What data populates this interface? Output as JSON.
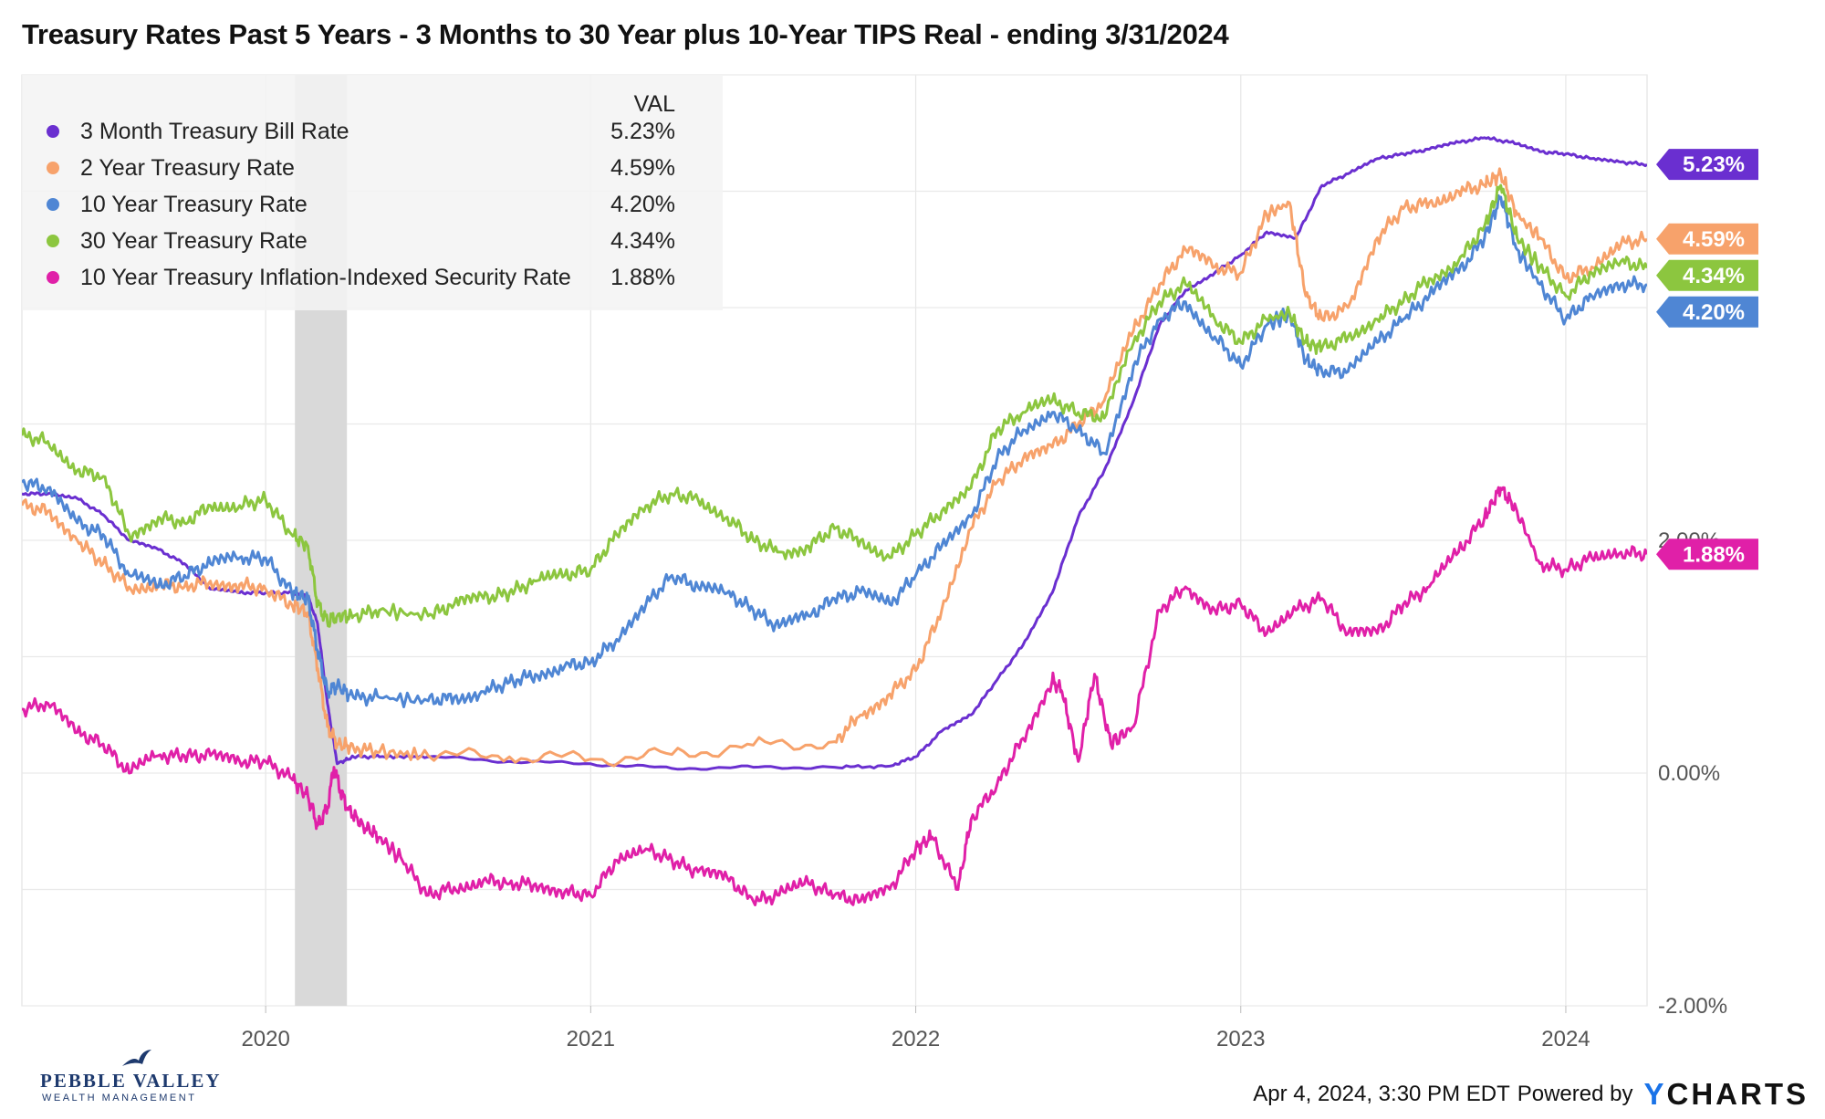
{
  "title": "Treasury Rates Past 5 Years - 3 Months to 30 Year plus 10-Year TIPS Real - ending 3/31/2024",
  "legend_header": "VAL",
  "footer": {
    "timestamp": "Apr 4, 2024, 3:30 PM EDT",
    "powered_by": "Powered by",
    "brand_y": "Y",
    "brand_rest": "CHARTS"
  },
  "logo": {
    "name": "PEBBLE VALLEY",
    "subtitle": "WEALTH MANAGEMENT"
  },
  "chart_data": {
    "type": "line",
    "title": "Treasury Rates Past 5 Years - 3 Months to 30 Year plus 10-Year TIPS Real - ending 3/31/2024",
    "xlabel": "",
    "ylabel": "",
    "x_range": [
      2019.25,
      2024.25
    ],
    "ylim": [
      -2.0,
      6.0
    ],
    "x_ticks": [
      {
        "value": 2020,
        "label": "2020"
      },
      {
        "value": 2021,
        "label": "2021"
      },
      {
        "value": 2022,
        "label": "2022"
      },
      {
        "value": 2023,
        "label": "2023"
      },
      {
        "value": 2024,
        "label": "2024"
      }
    ],
    "y_ticks": [
      {
        "value": 2,
        "label": "2.00%"
      },
      {
        "value": 0,
        "label": "0.00%"
      },
      {
        "value": -2,
        "label": "-2.00%"
      }
    ],
    "recession_band": {
      "start": 2020.09,
      "end": 2020.25
    },
    "legend_position": "top-left",
    "series": [
      {
        "name": "3 Month Treasury Bill Rate",
        "value_label": "5.23%",
        "color": "#6a2fd0",
        "x": [
          2019.25,
          2019.33,
          2019.42,
          2019.5,
          2019.58,
          2019.67,
          2019.75,
          2019.83,
          2019.92,
          2020.0,
          2020.08,
          2020.13,
          2020.16,
          2020.19,
          2020.22,
          2020.27,
          2020.35,
          2020.5,
          2020.75,
          2021.0,
          2021.25,
          2021.5,
          2021.75,
          2021.92,
          2022.0,
          2022.08,
          2022.17,
          2022.25,
          2022.33,
          2022.42,
          2022.5,
          2022.58,
          2022.67,
          2022.75,
          2022.83,
          2022.92,
          2023.0,
          2023.08,
          2023.17,
          2023.25,
          2023.33,
          2023.42,
          2023.5,
          2023.58,
          2023.67,
          2023.75,
          2023.83,
          2023.92,
          2024.0,
          2024.08,
          2024.17,
          2024.25
        ],
        "y": [
          2.4,
          2.4,
          2.36,
          2.22,
          2.0,
          1.92,
          1.8,
          1.58,
          1.55,
          1.55,
          1.55,
          1.52,
          1.28,
          0.6,
          0.08,
          0.14,
          0.14,
          0.14,
          0.1,
          0.08,
          0.04,
          0.05,
          0.05,
          0.06,
          0.14,
          0.36,
          0.5,
          0.8,
          1.1,
          1.55,
          2.2,
          2.6,
          3.2,
          3.85,
          4.15,
          4.3,
          4.45,
          4.65,
          4.6,
          5.05,
          5.15,
          5.28,
          5.32,
          5.36,
          5.42,
          5.46,
          5.42,
          5.34,
          5.32,
          5.28,
          5.25,
          5.23
        ]
      },
      {
        "name": "2 Year Treasury Rate",
        "value_label": "4.59%",
        "color": "#f7a26b",
        "x": [
          2019.25,
          2019.33,
          2019.42,
          2019.5,
          2019.58,
          2019.67,
          2019.75,
          2019.83,
          2019.92,
          2020.0,
          2020.08,
          2020.13,
          2020.16,
          2020.19,
          2020.22,
          2020.27,
          2020.35,
          2020.5,
          2020.75,
          2021.0,
          2021.25,
          2021.5,
          2021.75,
          2021.83,
          2021.92,
          2022.0,
          2022.08,
          2022.17,
          2022.25,
          2022.33,
          2022.42,
          2022.5,
          2022.58,
          2022.67,
          2022.75,
          2022.83,
          2022.92,
          2023.0,
          2023.08,
          2023.15,
          2023.2,
          2023.25,
          2023.33,
          2023.42,
          2023.5,
          2023.58,
          2023.67,
          2023.75,
          2023.8,
          2023.85,
          2023.92,
          2024.0,
          2024.08,
          2024.17,
          2024.25
        ],
        "y": [
          2.3,
          2.25,
          2.0,
          1.8,
          1.6,
          1.62,
          1.6,
          1.65,
          1.62,
          1.58,
          1.45,
          1.38,
          0.9,
          0.4,
          0.25,
          0.22,
          0.18,
          0.15,
          0.14,
          0.12,
          0.16,
          0.24,
          0.27,
          0.5,
          0.68,
          0.88,
          1.4,
          2.1,
          2.5,
          2.7,
          2.8,
          3.0,
          3.2,
          3.8,
          4.2,
          4.5,
          4.35,
          4.3,
          4.8,
          4.9,
          4.1,
          3.9,
          4.0,
          4.6,
          4.85,
          4.9,
          5.0,
          5.05,
          5.15,
          4.8,
          4.6,
          4.25,
          4.35,
          4.55,
          4.59
        ]
      },
      {
        "name": "10 Year Treasury Rate",
        "value_label": "4.20%",
        "color": "#4f86d4",
        "x": [
          2019.25,
          2019.33,
          2019.42,
          2019.5,
          2019.58,
          2019.67,
          2019.75,
          2019.83,
          2019.92,
          2020.0,
          2020.08,
          2020.13,
          2020.16,
          2020.19,
          2020.22,
          2020.27,
          2020.35,
          2020.5,
          2020.58,
          2020.67,
          2020.75,
          2020.83,
          2020.92,
          2021.0,
          2021.08,
          2021.17,
          2021.25,
          2021.33,
          2021.42,
          2021.5,
          2021.58,
          2021.67,
          2021.75,
          2021.83,
          2021.92,
          2022.0,
          2022.08,
          2022.17,
          2022.25,
          2022.33,
          2022.42,
          2022.5,
          2022.58,
          2022.67,
          2022.75,
          2022.83,
          2022.92,
          2023.0,
          2023.08,
          2023.15,
          2023.2,
          2023.25,
          2023.33,
          2023.42,
          2023.5,
          2023.58,
          2023.67,
          2023.75,
          2023.8,
          2023.85,
          2023.92,
          2024.0,
          2024.08,
          2024.17,
          2024.25
        ],
        "y": [
          2.5,
          2.45,
          2.15,
          2.05,
          1.7,
          1.6,
          1.7,
          1.8,
          1.85,
          1.85,
          1.55,
          1.5,
          1.05,
          0.7,
          0.75,
          0.65,
          0.65,
          0.62,
          0.65,
          0.7,
          0.78,
          0.85,
          0.92,
          0.95,
          1.15,
          1.45,
          1.7,
          1.6,
          1.55,
          1.4,
          1.25,
          1.35,
          1.5,
          1.55,
          1.45,
          1.7,
          1.95,
          2.2,
          2.7,
          2.95,
          3.1,
          2.95,
          2.75,
          3.5,
          3.9,
          4.05,
          3.75,
          3.5,
          3.85,
          3.95,
          3.55,
          3.45,
          3.45,
          3.7,
          3.9,
          4.1,
          4.3,
          4.6,
          4.95,
          4.5,
          4.2,
          3.9,
          4.1,
          4.2,
          4.2
        ]
      },
      {
        "name": "30 Year Treasury Rate",
        "value_label": "4.34%",
        "color": "#8cc63f",
        "x": [
          2019.25,
          2019.33,
          2019.42,
          2019.5,
          2019.58,
          2019.67,
          2019.75,
          2019.83,
          2019.92,
          2020.0,
          2020.08,
          2020.13,
          2020.16,
          2020.19,
          2020.22,
          2020.27,
          2020.35,
          2020.5,
          2020.58,
          2020.67,
          2020.75,
          2020.83,
          2020.92,
          2021.0,
          2021.08,
          2021.17,
          2021.25,
          2021.33,
          2021.42,
          2021.5,
          2021.58,
          2021.67,
          2021.75,
          2021.83,
          2021.92,
          2022.0,
          2022.08,
          2022.17,
          2022.25,
          2022.33,
          2022.42,
          2022.5,
          2022.58,
          2022.67,
          2022.75,
          2022.83,
          2022.92,
          2023.0,
          2023.08,
          2023.15,
          2023.2,
          2023.25,
          2023.33,
          2023.42,
          2023.5,
          2023.58,
          2023.67,
          2023.75,
          2023.8,
          2023.85,
          2023.92,
          2024.0,
          2024.08,
          2024.17,
          2024.25
        ],
        "y": [
          2.9,
          2.85,
          2.6,
          2.55,
          2.05,
          2.2,
          2.15,
          2.3,
          2.3,
          2.35,
          2.05,
          1.95,
          1.45,
          1.3,
          1.35,
          1.35,
          1.4,
          1.35,
          1.45,
          1.5,
          1.55,
          1.65,
          1.7,
          1.75,
          2.05,
          2.3,
          2.4,
          2.35,
          2.2,
          2.0,
          1.9,
          1.95,
          2.1,
          2.0,
          1.85,
          2.05,
          2.25,
          2.45,
          2.95,
          3.1,
          3.2,
          3.1,
          3.05,
          3.7,
          4.05,
          4.2,
          3.9,
          3.7,
          3.9,
          3.95,
          3.7,
          3.65,
          3.75,
          3.9,
          4.05,
          4.25,
          4.4,
          4.7,
          5.05,
          4.6,
          4.35,
          4.1,
          4.3,
          4.4,
          4.34
        ]
      },
      {
        "name": "10 Year Treasury Inflation-Indexed Security Rate",
        "value_label": "1.88%",
        "color": "#e020a8",
        "x": [
          2019.25,
          2019.33,
          2019.42,
          2019.5,
          2019.58,
          2019.67,
          2019.75,
          2019.83,
          2019.92,
          2020.0,
          2020.08,
          2020.13,
          2020.16,
          2020.19,
          2020.21,
          2020.23,
          2020.25,
          2020.3,
          2020.35,
          2020.42,
          2020.5,
          2020.58,
          2020.67,
          2020.75,
          2020.83,
          2020.92,
          2021.0,
          2021.08,
          2021.17,
          2021.25,
          2021.33,
          2021.42,
          2021.5,
          2021.58,
          2021.67,
          2021.75,
          2021.83,
          2021.92,
          2022.0,
          2022.05,
          2022.13,
          2022.17,
          2022.25,
          2022.33,
          2022.42,
          2022.45,
          2022.5,
          2022.55,
          2022.6,
          2022.67,
          2022.75,
          2022.83,
          2022.92,
          2023.0,
          2023.08,
          2023.17,
          2023.25,
          2023.33,
          2023.42,
          2023.5,
          2023.58,
          2023.67,
          2023.75,
          2023.8,
          2023.85,
          2023.92,
          2024.0,
          2024.08,
          2024.17,
          2024.25
        ],
        "y": [
          0.55,
          0.6,
          0.35,
          0.25,
          0.0,
          0.15,
          0.15,
          0.15,
          0.1,
          0.1,
          -0.05,
          -0.2,
          -0.45,
          -0.3,
          0.05,
          -0.15,
          -0.3,
          -0.45,
          -0.55,
          -0.75,
          -1.05,
          -0.98,
          -0.92,
          -0.95,
          -0.95,
          -1.02,
          -1.05,
          -0.75,
          -0.65,
          -0.75,
          -0.85,
          -0.9,
          -1.1,
          -1.05,
          -0.95,
          -1.05,
          -1.1,
          -1.0,
          -0.65,
          -0.55,
          -1.0,
          -0.4,
          -0.1,
          0.3,
          0.8,
          0.7,
          0.1,
          0.85,
          0.25,
          0.4,
          1.4,
          1.6,
          1.4,
          1.45,
          1.2,
          1.4,
          1.5,
          1.2,
          1.2,
          1.45,
          1.6,
          1.9,
          2.2,
          2.45,
          2.25,
          1.8,
          1.75,
          1.85,
          1.9,
          1.88
        ]
      }
    ]
  }
}
